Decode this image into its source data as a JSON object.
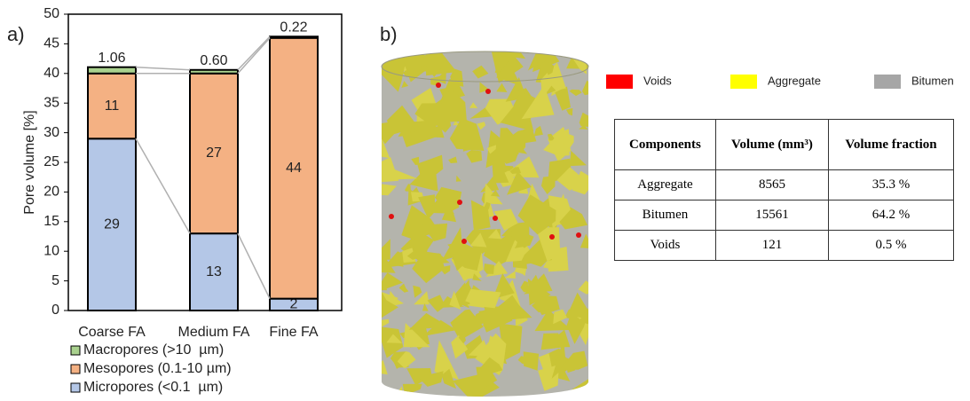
{
  "chart_data": {
    "type": "stacked_bar",
    "panel_label": "a)",
    "ylabel": "Pore volume [%]",
    "categories": [
      "Coarse FA",
      "Medium FA",
      "Fine FA"
    ],
    "series": [
      {
        "name": "Micropores (<0.1  µm)",
        "color": "#b4c7e7",
        "values": [
          29,
          13,
          2
        ]
      },
      {
        "name": "Mesopores (0.1-10 µm)",
        "color": "#f4b183",
        "values": [
          11,
          27,
          44
        ]
      },
      {
        "name": "Macropores (>10  µm)",
        "color": "#a9d18e",
        "values": [
          1.06,
          0.6,
          0.22
        ],
        "value_labels": [
          "1.06",
          "0.60",
          "0.22"
        ]
      }
    ],
    "ylim": [
      0,
      50
    ],
    "yticks": [
      0,
      5,
      10,
      15,
      20,
      25,
      30,
      35,
      40,
      45,
      50
    ],
    "grid": false,
    "series_lines_color": "#b0b0b0"
  },
  "panel_b": {
    "panel_label": "b)",
    "legend": [
      {
        "name": "Voids",
        "color": "#ff0000"
      },
      {
        "name": "Aggregate",
        "color": "#ffff00"
      },
      {
        "name": "Bitumen",
        "color": "#a6a6a6"
      }
    ],
    "table": {
      "header": [
        "Components",
        "Volume (mm³)",
        "Volume fraction"
      ],
      "rows": [
        [
          "Aggregate",
          8565,
          "35.3 %"
        ],
        [
          "Bitumen",
          15561,
          "64.2 %"
        ],
        [
          "Voids",
          121,
          "0.5 %"
        ]
      ]
    }
  }
}
